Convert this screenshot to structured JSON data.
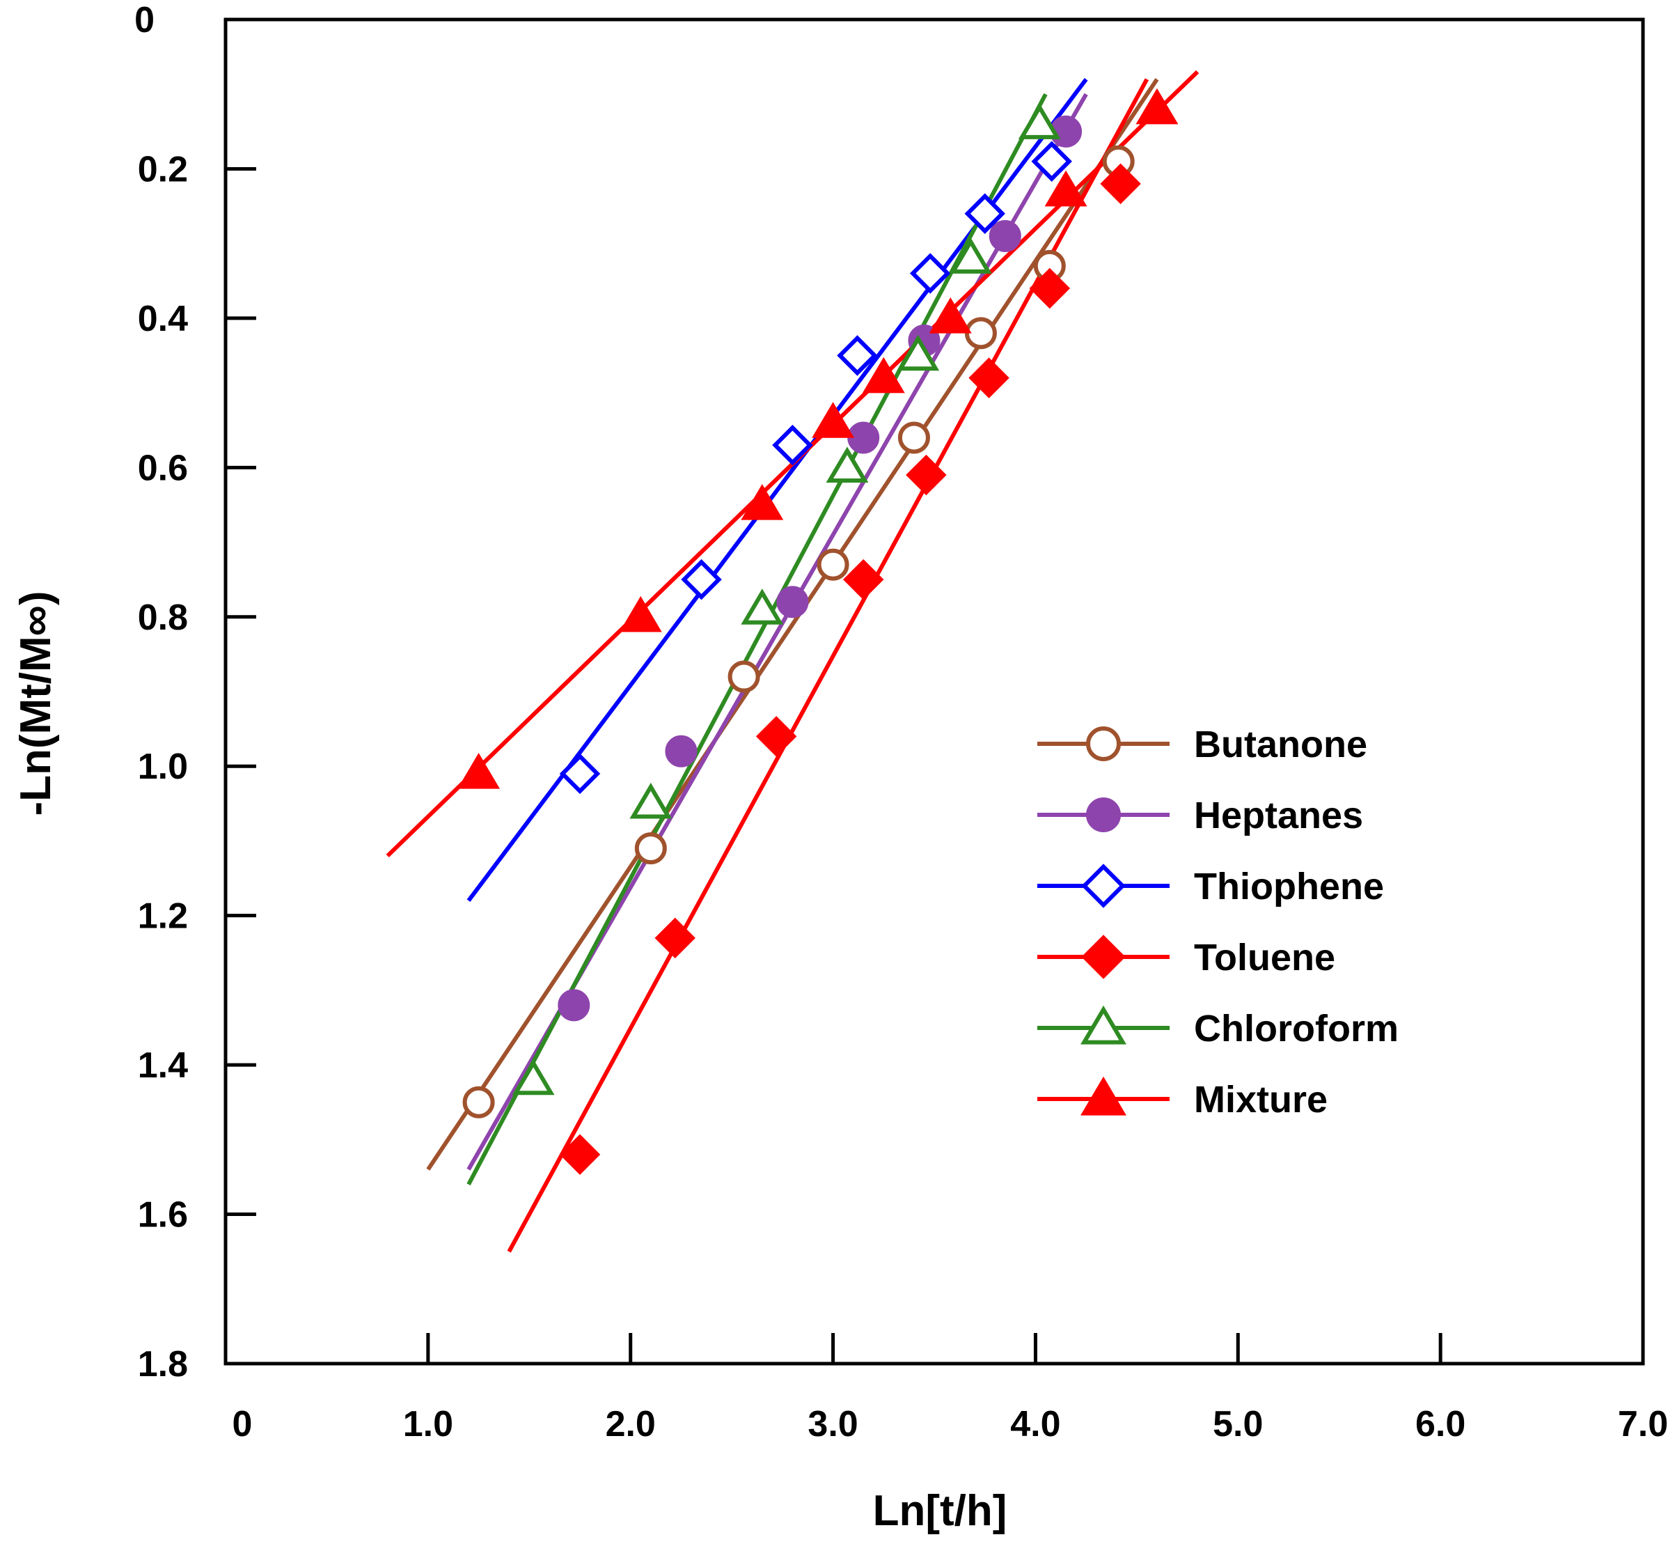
{
  "chart_data": {
    "type": "scatter",
    "title": "",
    "xlabel": "Ln[t/h]",
    "ylabel": "-Ln(Mt/M∞)",
    "xlim": [
      0,
      7.0
    ],
    "ylim": [
      0,
      1.8
    ],
    "y_inverted": true,
    "grid": false,
    "legend_position": "right-middle",
    "x_ticks": [
      {
        "value": 0,
        "label": "0"
      },
      {
        "value": 1.0,
        "label": "1.0"
      },
      {
        "value": 2.0,
        "label": "2.0"
      },
      {
        "value": 3.0,
        "label": "3.0"
      },
      {
        "value": 4.0,
        "label": "4.0"
      },
      {
        "value": 5.0,
        "label": "5.0"
      },
      {
        "value": 6.0,
        "label": "6.0"
      },
      {
        "value": 7.0,
        "label": "7.0"
      }
    ],
    "y_ticks": [
      {
        "value": 0,
        "label": "0"
      },
      {
        "value": 0.2,
        "label": "0.2"
      },
      {
        "value": 0.4,
        "label": "0.4"
      },
      {
        "value": 0.6,
        "label": "0.6"
      },
      {
        "value": 0.8,
        "label": "0.8"
      },
      {
        "value": 1.0,
        "label": "1.0"
      },
      {
        "value": 1.2,
        "label": "1.2"
      },
      {
        "value": 1.4,
        "label": "1.4"
      },
      {
        "value": 1.6,
        "label": "1.6"
      },
      {
        "value": 1.8,
        "label": "1.8"
      }
    ],
    "series": [
      {
        "name": "Butanone",
        "color": "#A0522D",
        "marker": "circle",
        "filled": false,
        "points": [
          [
            1.25,
            1.45
          ],
          [
            2.1,
            1.11
          ],
          [
            2.56,
            0.88
          ],
          [
            3.0,
            0.73
          ],
          [
            3.4,
            0.56
          ],
          [
            3.73,
            0.42
          ],
          [
            4.07,
            0.33
          ],
          [
            4.41,
            0.19
          ]
        ],
        "fit": [
          [
            1.0,
            1.54
          ],
          [
            4.6,
            0.08
          ]
        ]
      },
      {
        "name": "Heptanes",
        "color": "#8E44AD",
        "marker": "circle",
        "filled": true,
        "points": [
          [
            1.72,
            1.32
          ],
          [
            2.25,
            0.98
          ],
          [
            2.8,
            0.78
          ],
          [
            3.15,
            0.56
          ],
          [
            3.45,
            0.43
          ],
          [
            3.85,
            0.29
          ],
          [
            4.15,
            0.15
          ]
        ],
        "fit": [
          [
            1.2,
            1.54
          ],
          [
            4.25,
            0.1
          ]
        ]
      },
      {
        "name": "Thiophene",
        "color": "#0000FF",
        "marker": "diamond",
        "filled": false,
        "points": [
          [
            1.75,
            1.01
          ],
          [
            2.35,
            0.75
          ],
          [
            2.8,
            0.57
          ],
          [
            3.12,
            0.45
          ],
          [
            3.48,
            0.34
          ],
          [
            3.75,
            0.26
          ],
          [
            4.08,
            0.19
          ]
        ],
        "fit": [
          [
            1.2,
            1.18
          ],
          [
            4.25,
            0.08
          ]
        ]
      },
      {
        "name": "Toluene",
        "color": "#FF0000",
        "marker": "diamond",
        "filled": true,
        "points": [
          [
            1.75,
            1.52
          ],
          [
            2.22,
            1.23
          ],
          [
            2.72,
            0.96
          ],
          [
            3.15,
            0.75
          ],
          [
            3.46,
            0.61
          ],
          [
            3.77,
            0.48
          ],
          [
            4.07,
            0.36
          ],
          [
            4.42,
            0.22
          ]
        ],
        "fit": [
          [
            1.4,
            1.65
          ],
          [
            4.55,
            0.08
          ]
        ]
      },
      {
        "name": "Chloroform",
        "color": "#2E8B22",
        "marker": "triangle",
        "filled": false,
        "points": [
          [
            1.52,
            1.42
          ],
          [
            2.1,
            1.05
          ],
          [
            2.65,
            0.79
          ],
          [
            3.07,
            0.6
          ],
          [
            3.42,
            0.45
          ],
          [
            3.68,
            0.32
          ],
          [
            4.02,
            0.14
          ]
        ],
        "fit": [
          [
            1.2,
            1.56
          ],
          [
            4.05,
            0.1
          ]
        ]
      },
      {
        "name": "Mixture",
        "color": "#FF0000",
        "marker": "triangle",
        "filled": true,
        "points": [
          [
            1.25,
            1.01
          ],
          [
            2.05,
            0.8
          ],
          [
            2.65,
            0.65
          ],
          [
            3.0,
            0.54
          ],
          [
            3.25,
            0.48
          ],
          [
            3.58,
            0.4
          ],
          [
            4.15,
            0.23
          ],
          [
            4.6,
            0.12
          ]
        ],
        "fit": [
          [
            0.8,
            1.12
          ],
          [
            4.8,
            0.07
          ]
        ]
      }
    ]
  }
}
